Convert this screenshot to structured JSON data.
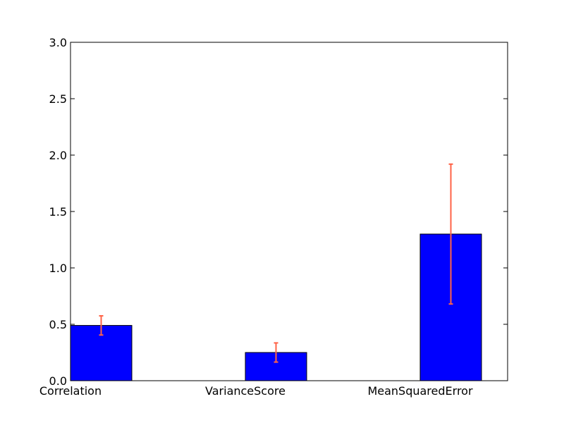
{
  "chart_data": {
    "type": "bar",
    "categories": [
      "Correlation",
      "VarianceScore",
      "MeanSquaredError"
    ],
    "values": [
      0.49,
      0.25,
      1.3
    ],
    "errors": [
      0.085,
      0.085,
      0.62
    ],
    "ylim": [
      0,
      3.0
    ],
    "yticks": [
      "0.0",
      "0.5",
      "1.0",
      "1.5",
      "2.0",
      "2.5",
      "3.0"
    ],
    "grid": false,
    "legend": "none",
    "colors": {
      "bar": "#0000ff",
      "bar_edge": "#000000",
      "error": "#ff6347",
      "axis": "#000000"
    }
  }
}
